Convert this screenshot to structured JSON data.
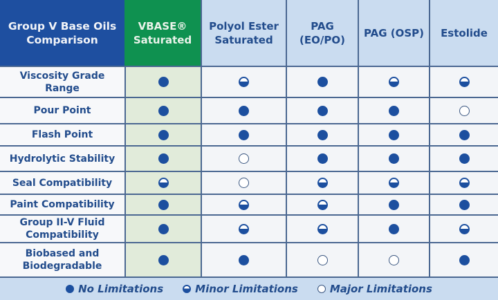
{
  "header": {
    "title": "Group V Base Oils Comparison",
    "columns": [
      {
        "label": "VBASE® Saturated"
      },
      {
        "label": "Polyol Ester Saturated"
      },
      {
        "label": "PAG (EO/PO)"
      },
      {
        "label": "PAG (OSP)"
      },
      {
        "label": "Estolide"
      }
    ]
  },
  "rows": [
    {
      "label": "Viscosity Grade Range",
      "values": [
        "full",
        "half",
        "full",
        "half",
        "half"
      ]
    },
    {
      "label": "Pour Point",
      "values": [
        "full",
        "full",
        "full",
        "full",
        "empty"
      ]
    },
    {
      "label": "Flash Point",
      "values": [
        "full",
        "full",
        "full",
        "full",
        "full"
      ]
    },
    {
      "label": "Hydrolytic Stability",
      "values": [
        "full",
        "empty",
        "full",
        "full",
        "full"
      ]
    },
    {
      "label": "Seal Compatibility",
      "values": [
        "half",
        "empty",
        "half",
        "half",
        "half"
      ]
    },
    {
      "label": "Paint Compatibility",
      "values": [
        "full",
        "half",
        "half",
        "full",
        "full"
      ]
    },
    {
      "label": "Group II-V Fluid Compatibility",
      "values": [
        "full",
        "half",
        "half",
        "full",
        "half"
      ]
    },
    {
      "label": "Biobased and Biodegradable",
      "values": [
        "full",
        "full",
        "empty",
        "empty",
        "full"
      ]
    }
  ],
  "legend": {
    "full": "No Limitations",
    "half": "Minor Limitations",
    "empty": "Major Limitations"
  },
  "colors": {
    "header_blue": "#1e4fa0",
    "vbase_green": "#0f9150",
    "light_blue": "#cadcf0",
    "dot_blue": "#1c4f9f"
  }
}
